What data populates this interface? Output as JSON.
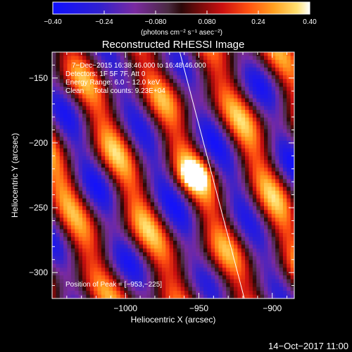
{
  "chart_data": {
    "type": "heatmap",
    "title": "Reconstructed RHESSI Image",
    "xlabel": "Heliocentric X (arcsec)",
    "ylabel": "Heliocentric Y (arcsec)",
    "xlim": [
      -1050,
      -885
    ],
    "ylim": [
      -320,
      -130
    ],
    "x_ticks": [
      -1000,
      -950,
      -900
    ],
    "x_tick_labels": [
      "−1000",
      "−950",
      "−900"
    ],
    "y_ticks": [
      -150,
      -200,
      -250,
      -300
    ],
    "y_tick_labels": [
      "−150",
      "−200",
      "−250",
      "−300"
    ],
    "colorbar": {
      "range": [
        -0.4,
        0.4
      ],
      "ticks": [
        -0.4,
        -0.24,
        -0.08,
        0.08,
        0.24,
        0.4
      ],
      "tick_labels": [
        "−0.40",
        "−0.24",
        "−0.080",
        "0.080",
        "0.24",
        "0.40"
      ],
      "units_label": "(photons cm⁻² s⁻¹ asec⁻²)"
    },
    "info": {
      "time_range": "7−Dec−2015 16:38:46.000 to 16:48:46.000",
      "detectors": "Detectors: 1F 5F 7F, Att 0",
      "energy": "Energy Range: 6.0 − 12.0 keV",
      "clean": "Clean     Total counts: 9.23E+04",
      "peak": "Position of Peak = [−953,−225]"
    },
    "peak_position": [
      -953,
      -225
    ],
    "limb_line": [
      [
        -963,
        -130
      ],
      [
        -919,
        -320
      ]
    ],
    "footer": "14−Oct−2017 11:00"
  }
}
